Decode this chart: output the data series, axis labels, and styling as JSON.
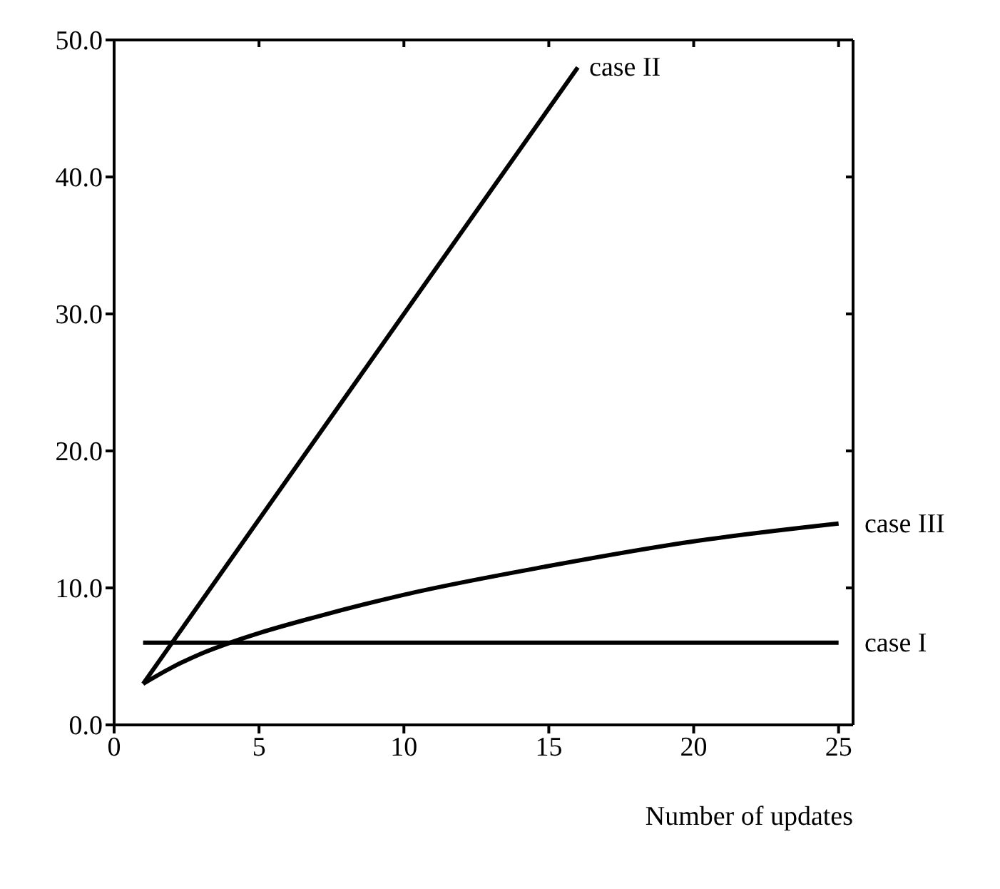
{
  "chart_data": {
    "type": "line",
    "xlabel": "Number of updates",
    "marker": "none",
    "line_style": "solid",
    "xlim": [
      0,
      25.5
    ],
    "xticks": [
      0,
      5,
      10,
      15,
      20,
      25
    ],
    "ylim": [
      0,
      50
    ],
    "yticks": [
      {
        "value": 0,
        "label": "0.0"
      },
      {
        "value": 10,
        "label": "10.0"
      },
      {
        "value": 20,
        "label": "20.0"
      },
      {
        "value": 30,
        "label": "30.0"
      },
      {
        "value": 40,
        "label": "40.0"
      },
      {
        "value": 50,
        "label": "50.0"
      }
    ],
    "series": [
      {
        "name": "case I",
        "color": "#000000",
        "x": [
          1,
          25
        ],
        "values": [
          6,
          6
        ]
      },
      {
        "name": "case II",
        "color": "#000000",
        "x": [
          1,
          16
        ],
        "values": [
          3,
          48
        ]
      },
      {
        "name": "case III",
        "color": "#000000",
        "x": [
          1,
          2,
          3,
          4,
          5,
          7,
          10,
          15,
          20,
          25
        ],
        "values": [
          3,
          4.2,
          5.2,
          6,
          6.7,
          7.9,
          9.5,
          11.6,
          13.4,
          14.7
        ]
      }
    ]
  }
}
